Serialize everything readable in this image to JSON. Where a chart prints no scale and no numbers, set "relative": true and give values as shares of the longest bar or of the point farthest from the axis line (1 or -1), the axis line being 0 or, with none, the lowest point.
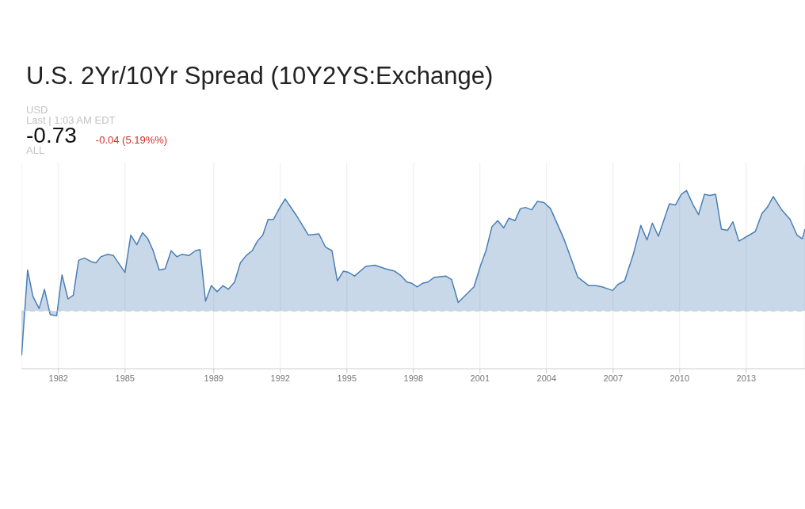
{
  "chart_data": {
    "type": "area",
    "title": "U.S. 2Yr/10Yr Spread (10Y2YS:Exchange)",
    "annotations": [
      "USD",
      "Last | 1:03 AM EDT",
      "-0.73",
      "-0.04 (5.19%%)",
      "ALL"
    ],
    "relative": true,
    "x": [
      1980.34,
      1980.61,
      1980.85,
      1981.13,
      1981.37,
      1981.63,
      1981.92,
      1982.16,
      1982.43,
      1982.67,
      1982.91,
      1983.17,
      1983.47,
      1983.69,
      1983.91,
      1984.22,
      1984.48,
      1985.0,
      1985.26,
      1985.53,
      1985.79,
      1986.03,
      1986.27,
      1986.54,
      1986.81,
      1987.08,
      1987.34,
      1987.56,
      1987.88,
      1988.17,
      1988.38,
      1988.63,
      1988.89,
      1989.15,
      1989.42,
      1989.66,
      1989.94,
      1990.2,
      1990.46,
      1990.73,
      1990.97,
      1991.21,
      1991.45,
      1991.69,
      1991.98,
      1992.22,
      1992.7,
      1993.27,
      1993.74,
      1994.04,
      1994.33,
      1994.57,
      1994.84,
      1995.08,
      1995.35,
      1995.85,
      1996.27,
      1996.74,
      1997.16,
      1997.46,
      1997.7,
      1997.93,
      1998.17,
      1998.41,
      1998.65,
      1998.95,
      1999.46,
      1999.72,
      2000.02,
      2000.73,
      2001.03,
      2001.27,
      2001.54,
      2001.8,
      2002.07,
      2002.3,
      2002.58,
      2002.82,
      2003.05,
      2003.33,
      2003.59,
      2003.89,
      2004.18,
      2004.78,
      2005.41,
      2005.91,
      2006.21,
      2006.5,
      2006.98,
      2007.22,
      2007.52,
      2007.91,
      2008.25,
      2008.53,
      2008.77,
      2009.04,
      2009.54,
      2009.81,
      2010.08,
      2010.31,
      2010.61,
      2010.85,
      2011.12,
      2011.36,
      2011.62,
      2011.88,
      2012.16,
      2012.4,
      2012.67,
      2013.41,
      2013.71,
      2013.95,
      2014.22,
      2014.6,
      2014.98,
      2015.29,
      2015.53,
      2015.65
    ],
    "series": [
      {
        "color": "#4a7fb5",
        "values": [
          -0.37,
          0.34,
          0.12,
          0.02,
          0.18,
          -0.03,
          -0.04,
          0.3,
          0.1,
          0.13,
          0.42,
          0.44,
          0.41,
          0.4,
          0.45,
          0.47,
          0.46,
          0.32,
          0.63,
          0.55,
          0.65,
          0.6,
          0.5,
          0.34,
          0.35,
          0.5,
          0.45,
          0.47,
          0.46,
          0.5,
          0.51,
          0.08,
          0.21,
          0.16,
          0.21,
          0.18,
          0.24,
          0.4,
          0.46,
          0.5,
          0.58,
          0.63,
          0.76,
          0.76,
          0.86,
          0.93,
          0.8,
          0.63,
          0.64,
          0.53,
          0.5,
          0.25,
          0.33,
          0.32,
          0.29,
          0.37,
          0.38,
          0.35,
          0.33,
          0.29,
          0.24,
          0.23,
          0.2,
          0.23,
          0.24,
          0.28,
          0.29,
          0.26,
          0.07,
          0.2,
          0.38,
          0.5,
          0.7,
          0.75,
          0.69,
          0.77,
          0.75,
          0.85,
          0.86,
          0.84,
          0.91,
          0.9,
          0.85,
          0.6,
          0.28,
          0.21,
          0.21,
          0.2,
          0.17,
          0.22,
          0.25,
          0.47,
          0.71,
          0.59,
          0.73,
          0.62,
          0.89,
          0.88,
          0.97,
          1,
          0.88,
          0.8,
          0.97,
          0.96,
          0.97,
          0.68,
          0.67,
          0.74,
          0.58,
          0.66,
          0.81,
          0.86,
          0.95,
          0.84,
          0.76,
          0.63,
          0.6,
          0.68
        ]
      }
    ],
    "xlim": [
      1980.33,
      2015.65
    ],
    "xticks": [
      1982,
      1985,
      1989,
      1992,
      1995,
      1998,
      2001,
      2004,
      2007,
      2010,
      2013
    ],
    "grid": "x",
    "ref_lines": [
      {
        "axis": "y",
        "value": 0,
        "color": "#c8c8c8",
        "line_style": "dashed"
      }
    ]
  }
}
